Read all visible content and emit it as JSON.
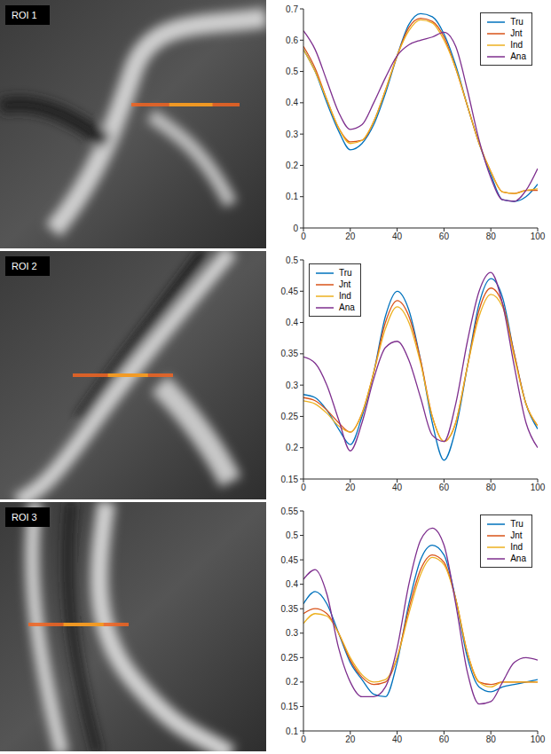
{
  "chart_data": [
    {
      "type": "line",
      "title": "ROI 1",
      "x": [
        0,
        5,
        10,
        15,
        20,
        25,
        30,
        35,
        40,
        45,
        50,
        55,
        60,
        65,
        70,
        75,
        80,
        85,
        90,
        95,
        100
      ],
      "series": [
        {
          "name": "Tru",
          "color": "#0072bd",
          "values": [
            0.57,
            0.5,
            0.4,
            0.31,
            0.25,
            0.27,
            0.33,
            0.43,
            0.55,
            0.65,
            0.685,
            0.675,
            0.62,
            0.52,
            0.39,
            0.27,
            0.17,
            0.09,
            0.085,
            0.1,
            0.14
          ]
        },
        {
          "name": "Jnt",
          "color": "#d95319",
          "values": [
            0.58,
            0.51,
            0.41,
            0.32,
            0.275,
            0.28,
            0.34,
            0.44,
            0.55,
            0.64,
            0.67,
            0.66,
            0.61,
            0.51,
            0.39,
            0.27,
            0.18,
            0.115,
            0.11,
            0.12,
            0.12
          ]
        },
        {
          "name": "Ind",
          "color": "#edb120",
          "values": [
            0.57,
            0.5,
            0.41,
            0.32,
            0.27,
            0.28,
            0.34,
            0.44,
            0.55,
            0.63,
            0.665,
            0.655,
            0.6,
            0.51,
            0.39,
            0.27,
            0.18,
            0.115,
            0.11,
            0.12,
            0.125
          ]
        },
        {
          "name": "Ana",
          "color": "#7e2f8e",
          "values": [
            0.63,
            0.57,
            0.47,
            0.37,
            0.315,
            0.33,
            0.4,
            0.48,
            0.55,
            0.585,
            0.6,
            0.61,
            0.625,
            0.58,
            0.44,
            0.28,
            0.16,
            0.09,
            0.085,
            0.12,
            0.19
          ]
        }
      ],
      "xlim": [
        0,
        100
      ],
      "xticks": [
        0,
        20,
        40,
        60,
        80,
        100
      ],
      "ylim": [
        0,
        0.7
      ],
      "yticks": [
        0,
        0.1,
        0.2,
        0.3,
        0.4,
        0.5,
        0.6,
        0.7
      ],
      "grid": false,
      "legend": "upper right"
    },
    {
      "type": "line",
      "title": "ROI 2",
      "x": [
        0,
        5,
        10,
        15,
        20,
        25,
        30,
        35,
        40,
        45,
        50,
        55,
        60,
        65,
        70,
        75,
        80,
        85,
        90,
        95,
        100
      ],
      "series": [
        {
          "name": "Tru",
          "color": "#0072bd",
          "values": [
            0.285,
            0.28,
            0.26,
            0.23,
            0.205,
            0.25,
            0.32,
            0.41,
            0.45,
            0.42,
            0.34,
            0.24,
            0.18,
            0.23,
            0.33,
            0.43,
            0.47,
            0.44,
            0.35,
            0.27,
            0.23
          ]
        },
        {
          "name": "Jnt",
          "color": "#d95319",
          "values": [
            0.28,
            0.275,
            0.26,
            0.24,
            0.225,
            0.255,
            0.32,
            0.4,
            0.435,
            0.41,
            0.34,
            0.25,
            0.21,
            0.24,
            0.33,
            0.42,
            0.455,
            0.43,
            0.35,
            0.27,
            0.235
          ]
        },
        {
          "name": "Ind",
          "color": "#edb120",
          "values": [
            0.275,
            0.27,
            0.255,
            0.235,
            0.225,
            0.255,
            0.32,
            0.39,
            0.425,
            0.4,
            0.335,
            0.25,
            0.21,
            0.24,
            0.33,
            0.41,
            0.445,
            0.425,
            0.345,
            0.27,
            0.235
          ]
        },
        {
          "name": "Ana",
          "color": "#7e2f8e",
          "values": [
            0.345,
            0.335,
            0.3,
            0.245,
            0.195,
            0.24,
            0.31,
            0.36,
            0.37,
            0.34,
            0.28,
            0.22,
            0.21,
            0.27,
            0.37,
            0.45,
            0.48,
            0.43,
            0.33,
            0.24,
            0.2
          ]
        }
      ],
      "xlim": [
        0,
        100
      ],
      "xticks": [
        0,
        20,
        40,
        60,
        80,
        100
      ],
      "ylim": [
        0.15,
        0.5
      ],
      "yticks": [
        0.15,
        0.2,
        0.25,
        0.3,
        0.35,
        0.4,
        0.45,
        0.5
      ],
      "grid": false,
      "legend": "upper left"
    },
    {
      "type": "line",
      "title": "ROI 3",
      "x": [
        0,
        5,
        10,
        15,
        20,
        25,
        30,
        35,
        40,
        45,
        50,
        55,
        60,
        65,
        70,
        75,
        80,
        85,
        90,
        95,
        100
      ],
      "series": [
        {
          "name": "Tru",
          "color": "#0072bd",
          "values": [
            0.36,
            0.385,
            0.36,
            0.3,
            0.24,
            0.205,
            0.175,
            0.17,
            0.24,
            0.36,
            0.45,
            0.48,
            0.46,
            0.37,
            0.25,
            0.19,
            0.18,
            0.19,
            0.195,
            0.2,
            0.205
          ]
        },
        {
          "name": "Jnt",
          "color": "#d95319",
          "values": [
            0.34,
            0.35,
            0.34,
            0.3,
            0.245,
            0.21,
            0.195,
            0.2,
            0.25,
            0.35,
            0.43,
            0.46,
            0.445,
            0.37,
            0.26,
            0.2,
            0.195,
            0.2,
            0.2,
            0.2,
            0.2
          ]
        },
        {
          "name": "Ind",
          "color": "#edb120",
          "values": [
            0.32,
            0.34,
            0.335,
            0.3,
            0.25,
            0.215,
            0.2,
            0.205,
            0.25,
            0.34,
            0.42,
            0.455,
            0.44,
            0.37,
            0.26,
            0.2,
            0.19,
            0.2,
            0.2,
            0.2,
            0.2
          ]
        },
        {
          "name": "Ana",
          "color": "#7e2f8e",
          "values": [
            0.41,
            0.43,
            0.38,
            0.27,
            0.2,
            0.17,
            0.17,
            0.19,
            0.27,
            0.4,
            0.49,
            0.515,
            0.48,
            0.36,
            0.22,
            0.155,
            0.16,
            0.2,
            0.24,
            0.25,
            0.245
          ]
        }
      ],
      "xlim": [
        0,
        100
      ],
      "xticks": [
        0,
        20,
        40,
        60,
        80,
        100
      ],
      "ylim": [
        0.1,
        0.55
      ],
      "yticks": [
        0.1,
        0.15,
        0.2,
        0.25,
        0.3,
        0.35,
        0.4,
        0.45,
        0.5,
        0.55
      ],
      "grid": false,
      "legend": "upper right"
    }
  ]
}
